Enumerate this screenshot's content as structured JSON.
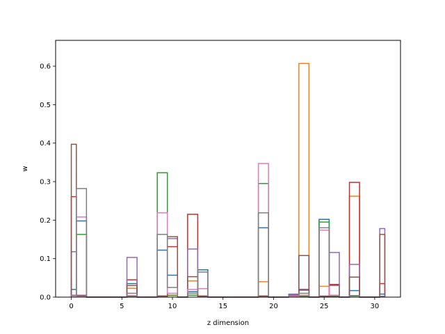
{
  "chart_data": {
    "type": "step",
    "xlabel": "z dimension",
    "ylabel": "w",
    "xlim": [
      -1.55,
      32.55
    ],
    "ylim": [
      0,
      0.667
    ],
    "xticks": [
      0,
      5,
      10,
      15,
      20,
      25,
      30
    ],
    "xtick_labels": [
      "0",
      "5",
      "10",
      "15",
      "20",
      "25",
      "30"
    ],
    "yticks": [
      0.0,
      0.1,
      0.2,
      0.3,
      0.4,
      0.5,
      0.6
    ],
    "ytick_labels": [
      "0.0",
      "0.1",
      "0.2",
      "0.3",
      "0.4",
      "0.5",
      "0.6"
    ],
    "grid": false,
    "x": [
      0,
      1,
      2,
      3,
      4,
      5,
      6,
      7,
      8,
      9,
      10,
      11,
      12,
      13,
      14,
      15,
      16,
      17,
      18,
      19,
      20,
      21,
      22,
      23,
      24,
      25,
      26,
      27,
      28,
      29,
      30,
      31
    ],
    "series": [
      {
        "color": "#1f77b4",
        "values": [
          0.02,
          0.198,
          0,
          0,
          0,
          0,
          0.035,
          0,
          0,
          0.122,
          0.057,
          0,
          0.014,
          0.071,
          0,
          0,
          0,
          0,
          0,
          0.18,
          0,
          0,
          0.006,
          0.018,
          0,
          0.202,
          0.032,
          0,
          0.017,
          0,
          0,
          0.008
        ]
      },
      {
        "color": "#ff7f0e",
        "values": [
          0.004,
          0.003,
          0,
          0,
          0,
          0,
          0.023,
          0,
          0,
          0.003,
          0.004,
          0,
          0.042,
          0.003,
          0,
          0,
          0,
          0,
          0,
          0.04,
          0,
          0,
          0.003,
          0.607,
          0,
          0.028,
          0.002,
          0,
          0.262,
          0,
          0,
          0.001
        ]
      },
      {
        "color": "#2ca02c",
        "values": [
          0.003,
          0.163,
          0,
          0,
          0,
          0,
          0.002,
          0,
          0,
          0.323,
          0.005,
          0,
          0.005,
          0.002,
          0,
          0,
          0,
          0,
          0,
          0.295,
          0,
          0,
          0.002,
          0.002,
          0,
          0.195,
          0.002,
          0,
          0.003,
          0,
          0,
          0.001
        ]
      },
      {
        "color": "#d62728",
        "values": [
          0.261,
          0.004,
          0,
          0,
          0,
          0,
          0.045,
          0,
          0,
          0.003,
          0.131,
          0,
          0.215,
          0.002,
          0,
          0,
          0,
          0,
          0,
          0.003,
          0,
          0,
          0.002,
          0.02,
          0,
          0.002,
          0.033,
          0,
          0.298,
          0,
          0,
          0.035
        ]
      },
      {
        "color": "#9467bd",
        "values": [
          0.118,
          0.005,
          0,
          0,
          0,
          0,
          0.103,
          0,
          0,
          0.002,
          0.152,
          0,
          0.125,
          0.002,
          0,
          0,
          0,
          0,
          0,
          0.002,
          0,
          0,
          0.008,
          0.108,
          0,
          0.003,
          0.116,
          0,
          0.085,
          0,
          0,
          0.178
        ]
      },
      {
        "color": "#8c564b",
        "values": [
          0.397,
          0.003,
          0,
          0,
          0,
          0,
          0.03,
          0,
          0,
          0.003,
          0.157,
          0,
          0.053,
          0.003,
          0,
          0,
          0,
          0,
          0,
          0.003,
          0,
          0,
          0.004,
          0.108,
          0,
          0.002,
          0.004,
          0,
          0.052,
          0,
          0,
          0.163
        ]
      },
      {
        "color": "#e377c2",
        "values": [
          0.003,
          0.208,
          0,
          0,
          0,
          0,
          0.004,
          0,
          0,
          0.219,
          0.01,
          0,
          0.02,
          0.022,
          0,
          0,
          0,
          0,
          0,
          0.347,
          0,
          0,
          0.002,
          0.005,
          0,
          0.174,
          0.005,
          0,
          0.004,
          0,
          0,
          0.002
        ]
      },
      {
        "color": "#7f7f7f",
        "values": [
          0.005,
          0.282,
          0,
          0,
          0,
          0,
          0.01,
          0,
          0,
          0.163,
          0.025,
          0,
          0.01,
          0.065,
          0,
          0,
          0,
          0,
          0,
          0.219,
          0,
          0,
          0.005,
          0.01,
          0,
          0.18,
          0.03,
          0,
          0.004,
          0,
          0,
          0.002
        ]
      }
    ]
  }
}
